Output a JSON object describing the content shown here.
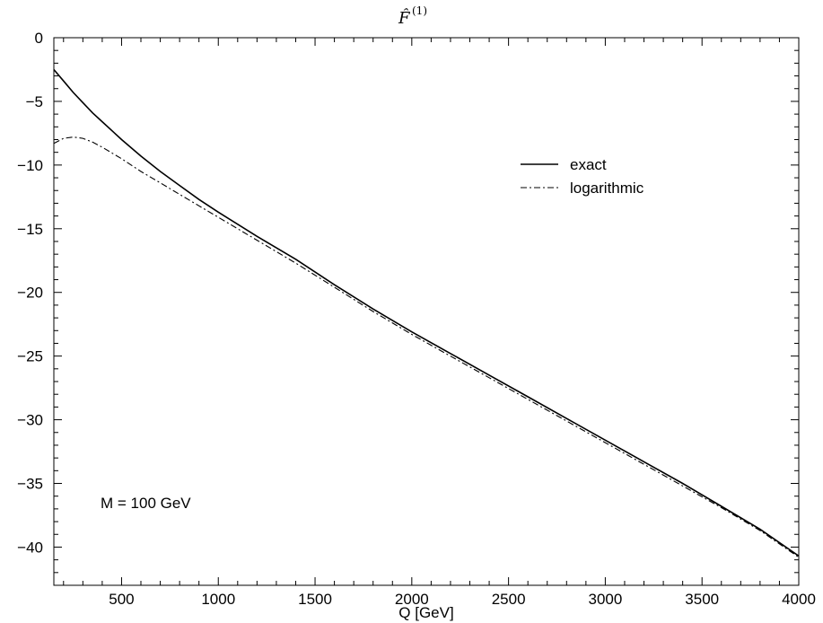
{
  "chart_data": {
    "type": "line",
    "title": "F̂",
    "title_superscript": "(1)",
    "xlabel": "Q [GeV]",
    "ylabel": "",
    "xlim": [
      150,
      4000
    ],
    "ylim": [
      -43,
      0
    ],
    "x_ticks": [
      500,
      1000,
      1500,
      2000,
      2500,
      3000,
      3500,
      4000
    ],
    "y_ticks": [
      0,
      -5,
      -10,
      -15,
      -20,
      -25,
      -30,
      -35,
      -40
    ],
    "grid": false,
    "legend_position": "top-right",
    "annotation": "M = 100 GeV",
    "series": [
      {
        "name": "exact",
        "style": "solid",
        "x": [
          150,
          200,
          250,
          300,
          350,
          400,
          500,
          600,
          700,
          800,
          900,
          1000,
          1200,
          1400,
          1600,
          1800,
          2000,
          2200,
          2400,
          2600,
          2800,
          3000,
          3200,
          3400,
          3600,
          3800,
          4000
        ],
        "y": [
          -2.5,
          -3.4,
          -4.3,
          -5.1,
          -5.9,
          -6.6,
          -8.0,
          -9.3,
          -10.5,
          -11.6,
          -12.7,
          -13.7,
          -15.6,
          -17.4,
          -19.4,
          -21.3,
          -23.1,
          -24.8,
          -26.5,
          -28.2,
          -29.9,
          -31.6,
          -33.3,
          -35.0,
          -36.8,
          -38.6,
          -40.7
        ]
      },
      {
        "name": "logarithmic",
        "style": "dash-dot",
        "x": [
          150,
          200,
          250,
          300,
          350,
          400,
          500,
          600,
          700,
          800,
          900,
          1000,
          1200,
          1400,
          1600,
          1800,
          2000,
          2200,
          2400,
          2600,
          2800,
          3000,
          3200,
          3400,
          3600,
          3800,
          4000
        ],
        "y": [
          -8.3,
          -7.9,
          -7.8,
          -7.9,
          -8.2,
          -8.6,
          -9.5,
          -10.5,
          -11.4,
          -12.3,
          -13.2,
          -14.1,
          -15.9,
          -17.7,
          -19.6,
          -21.5,
          -23.3,
          -25.0,
          -26.7,
          -28.4,
          -30.1,
          -31.8,
          -33.5,
          -35.2,
          -36.9,
          -38.7,
          -40.8
        ]
      }
    ]
  }
}
